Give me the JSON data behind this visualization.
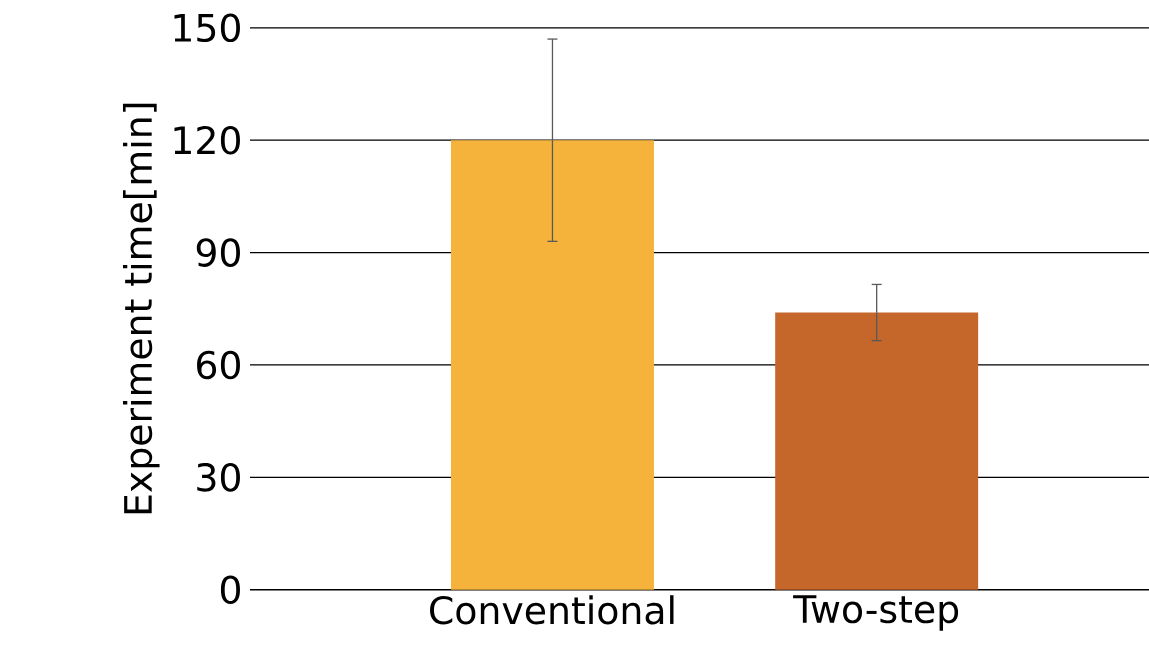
{
  "chart_data": {
    "type": "bar",
    "ylabel": "Experiment time[min]",
    "categories": [
      "Conventional",
      "Two-step"
    ],
    "values": [
      120,
      74
    ],
    "errors": [
      27,
      7.5
    ],
    "colors": [
      "#f5b33b",
      "#c5672a"
    ],
    "ylim": [
      0,
      150
    ],
    "yticks": [
      0,
      30,
      60,
      90,
      120,
      150
    ],
    "grid": "y"
  }
}
